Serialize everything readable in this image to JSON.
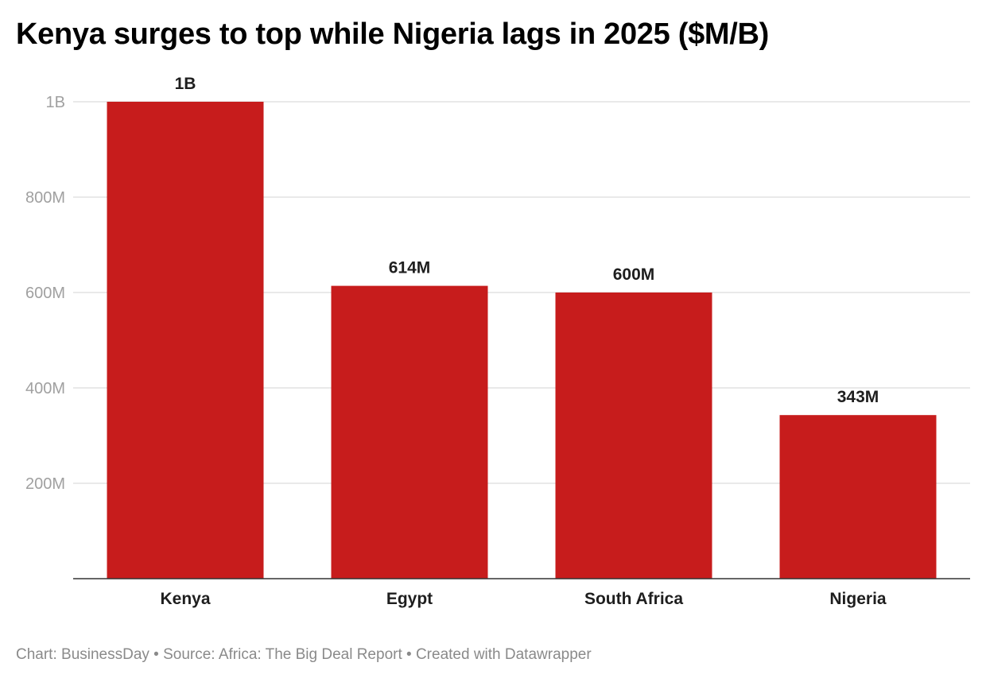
{
  "chart_data": {
    "type": "bar",
    "title": "Kenya surges to top while Nigeria lags in 2025 ($M/B)",
    "categories": [
      "Kenya",
      "Egypt",
      "South Africa",
      "Nigeria"
    ],
    "values": [
      1000,
      614,
      600,
      343
    ],
    "value_unit": "$M",
    "data_labels": [
      "1B",
      "614M",
      "600M",
      "343M"
    ],
    "ylim": [
      0,
      1000
    ],
    "yticks": [
      200,
      400,
      600,
      800,
      1000
    ],
    "ytick_labels": [
      "200M",
      "400M",
      "600M",
      "800M",
      "1B"
    ],
    "grid": true,
    "xlabel": "",
    "ylabel": "",
    "bar_color": "#c71c1c"
  },
  "footer": "Chart: BusinessDay • Source: Africa: The Big Deal Report • Created with Datawrapper"
}
